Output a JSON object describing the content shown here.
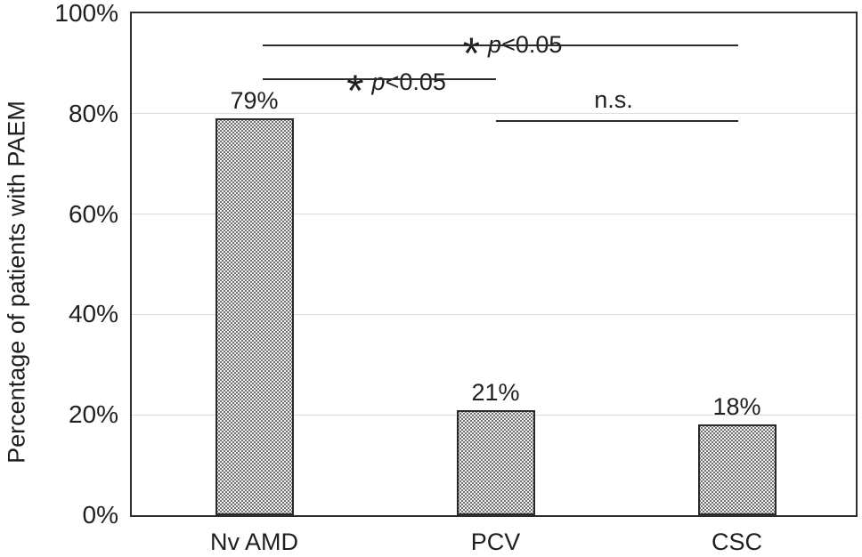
{
  "chart_data": {
    "type": "bar",
    "title": "",
    "xlabel": "",
    "ylabel": "Percentage of patients with PAEM",
    "categories": [
      "Nv AMD",
      "PCV",
      "CSC"
    ],
    "values": [
      79,
      21,
      18
    ],
    "value_labels": [
      "79%",
      "21%",
      "18%"
    ],
    "ylim": [
      0,
      100
    ],
    "ytick_values": [
      0,
      20,
      40,
      60,
      80,
      100
    ],
    "ytick_labels": [
      "0%",
      "20%",
      "40%",
      "60%",
      "80%",
      "100%"
    ],
    "grid": true,
    "legend": false,
    "bar_style": {
      "fill": "dotted-stipple-pattern",
      "fill_base": "#f2f2f2",
      "dot_color": "#454545",
      "border_color": "#2a2a2a"
    },
    "annotations": [
      {
        "id": "nvamd-vs-csc",
        "between": [
          "Nv AMD",
          "CSC"
        ],
        "significant": true,
        "star": "*",
        "p_italic": "p",
        "text": "<0.05"
      },
      {
        "id": "nvamd-vs-pcv",
        "between": [
          "Nv AMD",
          "PCV"
        ],
        "significant": true,
        "star": "*",
        "p_italic": "p",
        "text": "<0.05"
      },
      {
        "id": "pcv-vs-csc",
        "between": [
          "PCV",
          "CSC"
        ],
        "significant": false,
        "label": "n.s."
      }
    ]
  }
}
